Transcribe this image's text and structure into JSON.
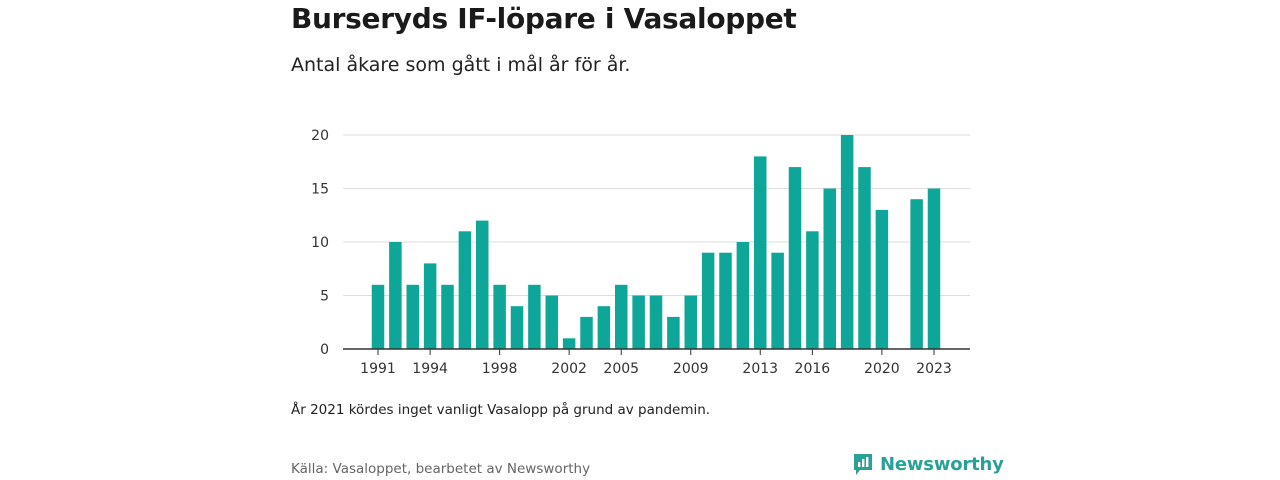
{
  "header": {
    "title": "Burseryds IF-löpare i Vasaloppet",
    "subtitle": "Antal åkare som gått i mål år för år."
  },
  "footer": {
    "note": "År 2021 kördes inget vanligt Vasalopp på grund av pandemin.",
    "source": "Källa: Vasaloppet, bearbetet av Newsworthy",
    "logo_text": "Newsworthy"
  },
  "colors": {
    "bar": "#0fa69a",
    "grid": "#dddddd",
    "axis": "#333333",
    "logo": "#2aa198"
  },
  "chart_data": {
    "type": "bar",
    "title": "Burseryds IF-löpare i Vasaloppet",
    "subtitle": "Antal åkare som gått i mål år för år.",
    "xlabel": "",
    "ylabel": "",
    "ylim": [
      0,
      20
    ],
    "yticks": [
      0,
      5,
      10,
      15,
      20
    ],
    "xtick_labels": [
      "1991",
      "1994",
      "1998",
      "2002",
      "2005",
      "2009",
      "2013",
      "2016",
      "2020",
      "2023"
    ],
    "grid": true,
    "categories": [
      "1991",
      "1992",
      "1993",
      "1994",
      "1995",
      "1996",
      "1997",
      "1998",
      "1999",
      "2000",
      "2001",
      "2002",
      "2003",
      "2004",
      "2005",
      "2006",
      "2007",
      "2008",
      "2009",
      "2010",
      "2011",
      "2012",
      "2013",
      "2014",
      "2015",
      "2016",
      "2017",
      "2018",
      "2019",
      "2020",
      "2021",
      "2022",
      "2023"
    ],
    "values": [
      6,
      10,
      6,
      8,
      6,
      11,
      12,
      6,
      4,
      6,
      5,
      1,
      3,
      4,
      6,
      5,
      5,
      3,
      5,
      9,
      9,
      10,
      18,
      9,
      17,
      11,
      15,
      20,
      17,
      13,
      null,
      14,
      15
    ]
  }
}
